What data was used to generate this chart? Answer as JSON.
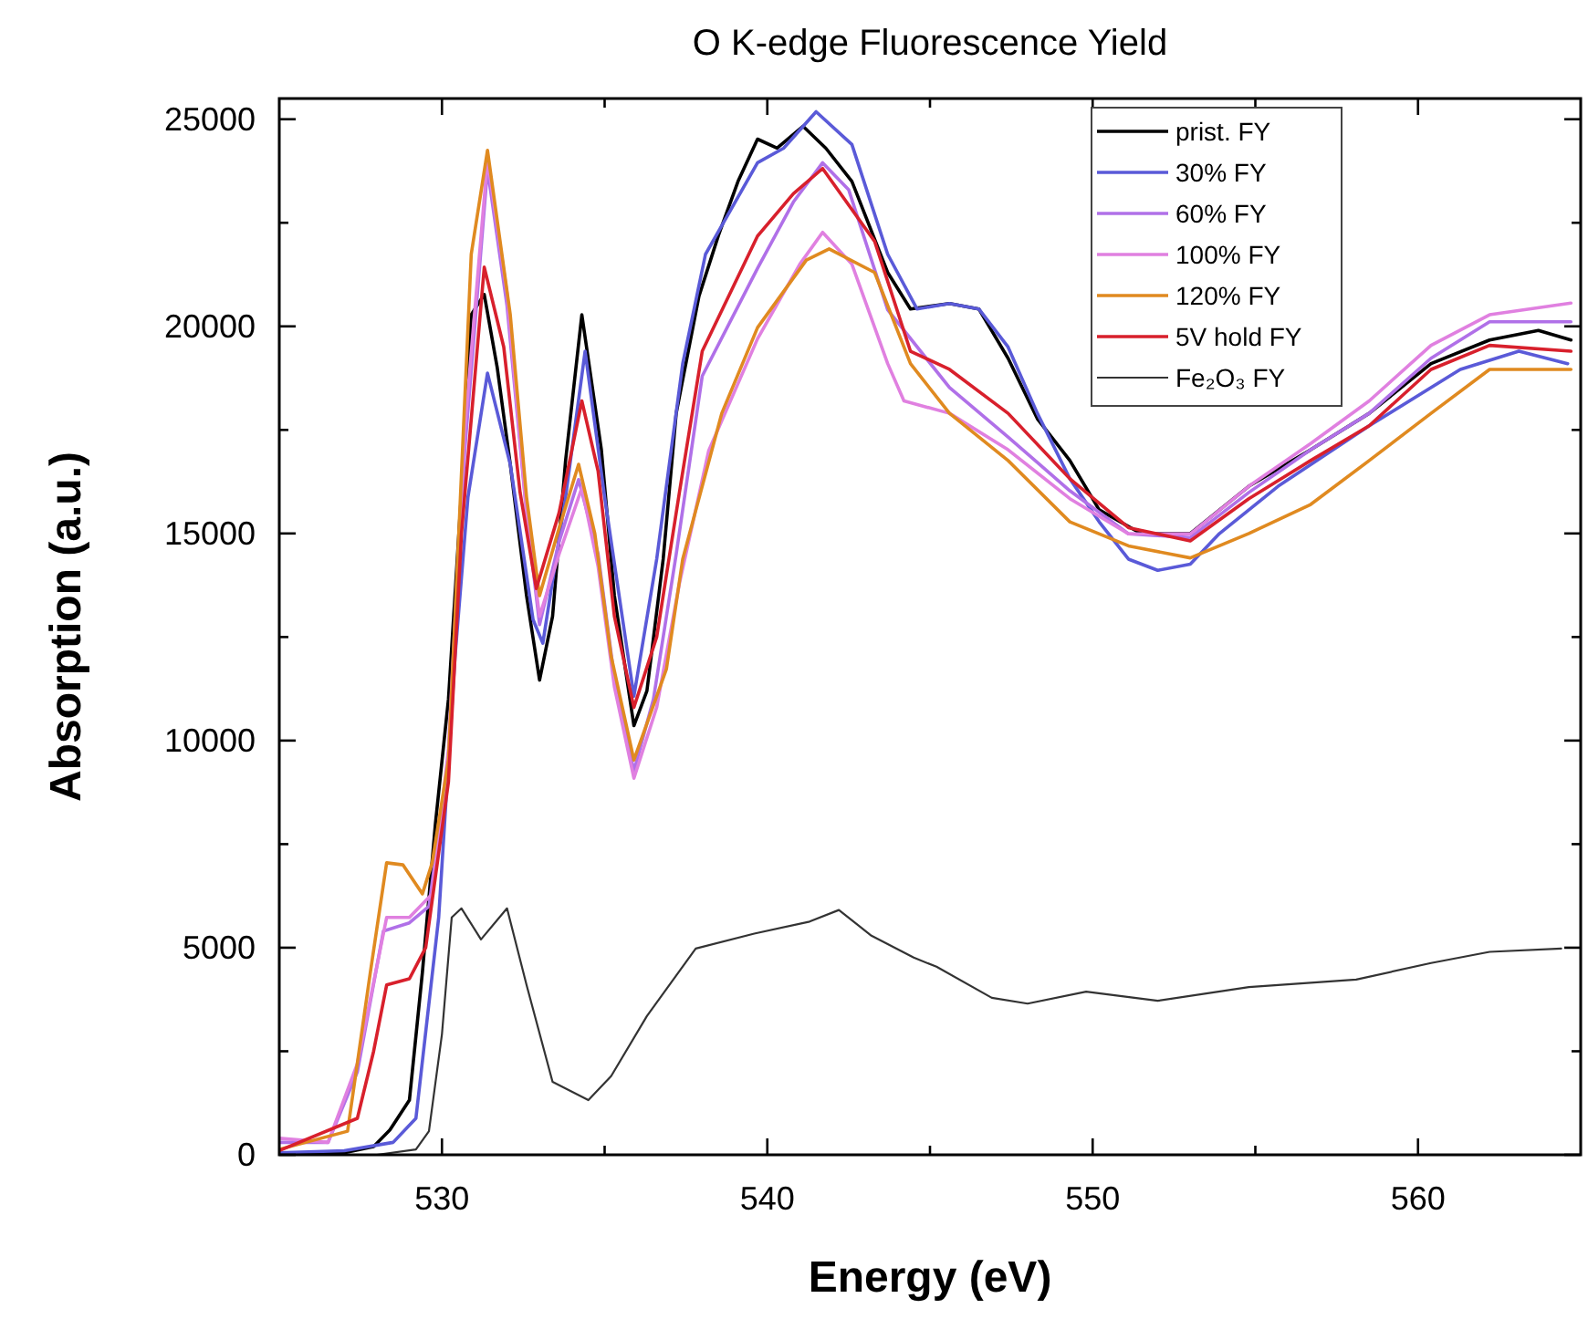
{
  "chart_data": {
    "type": "line",
    "title": "O K-edge Fluorescence Yield",
    "xlabel": "Energy (eV)",
    "ylabel": "Absorption (a.u.)",
    "xlim": [
      525,
      565
    ],
    "ylim": [
      0,
      25500
    ],
    "xticks": [
      530,
      {
        "value": 535,
        "label": null
      },
      540,
      {
        "value": 545,
        "label": null
      },
      550,
      {
        "value": 555,
        "label": null
      },
      560
    ],
    "yticks": [
      0,
      {
        "value": 2500,
        "label": null
      },
      5000,
      {
        "value": 7500,
        "label": null
      },
      10000,
      {
        "value": 12500,
        "label": null
      },
      15000,
      {
        "value": 17500,
        "label": null
      },
      20000,
      {
        "value": 22500,
        "label": null
      },
      25000
    ],
    "grid": false,
    "legend": "top right",
    "marker": "none",
    "line_style": "solid",
    "series": [
      {
        "name": "prist. FY",
        "color": "#000000",
        "x": [
          525,
          527,
          527.9,
          528.4,
          529,
          529.4,
          529.8,
          530.2,
          530.6,
          530.9,
          531.3,
          531.7,
          532.1,
          532.6,
          533,
          533.4,
          533.8,
          534.3,
          534.9,
          535.3,
          535.9,
          536.3,
          536.8,
          537.2,
          537.9,
          538.5,
          539.1,
          539.7,
          540.3,
          541.1,
          541.8,
          542.6,
          543.7,
          544.4,
          545.6,
          546.5,
          547.4,
          548.3,
          549.3,
          550.2,
          551.5,
          553,
          554.8,
          556.7,
          558.5,
          560.4,
          562.2,
          563.7,
          564.7
        ],
        "values": [
          0,
          50,
          200,
          600,
          1320,
          4410,
          8000,
          11000,
          16000,
          20280,
          20770,
          19000,
          16670,
          13500,
          11460,
          13000,
          16760,
          20280,
          17020,
          13500,
          10360,
          11200,
          14380,
          17900,
          20730,
          22200,
          23500,
          24520,
          24300,
          24830,
          24300,
          23500,
          21300,
          20420,
          20550,
          20420,
          19230,
          17770,
          16760,
          15570,
          14990,
          15000,
          16140,
          17020,
          17900,
          19100,
          19670,
          19900,
          19670
        ]
      },
      {
        "name": "30% FY",
        "color": "#5a5ad8",
        "x": [
          525,
          527,
          528.5,
          529.2,
          529.9,
          530.4,
          530.8,
          531.4,
          532.1,
          532.8,
          533.1,
          533.8,
          534.4,
          535,
          535.9,
          536.6,
          537.4,
          538.1,
          539.7,
          540.5,
          541.5,
          542.6,
          543.7,
          544.6,
          545.6,
          546.5,
          547.4,
          548.3,
          549.3,
          550.2,
          551.1,
          552,
          553,
          553.9,
          555.7,
          558.5,
          561.3,
          563.1,
          564.6
        ],
        "values": [
          50,
          100,
          300,
          880,
          5730,
          12000,
          15880,
          18870,
          16670,
          12920,
          12350,
          15880,
          19400,
          15880,
          11070,
          14380,
          19100,
          21740,
          23950,
          24300,
          25180,
          24390,
          21740,
          20420,
          20550,
          20420,
          19500,
          17900,
          16320,
          15280,
          14380,
          14110,
          14260,
          15000,
          16140,
          17600,
          18960,
          19400,
          19100
        ]
      },
      {
        "name": "60% FY",
        "color": "#b070e8",
        "x": [
          525,
          526.5,
          527.4,
          528.2,
          529,
          529.6,
          530.2,
          530.7,
          531.4,
          532,
          532.6,
          533,
          533.6,
          534.2,
          534.8,
          535.3,
          535.9,
          536.5,
          537.2,
          538,
          539.7,
          540.8,
          541.7,
          542.5,
          543.7,
          545.6,
          547.4,
          549.3,
          551.1,
          553,
          554.8,
          556.7,
          558.5,
          560.4,
          562.2,
          564.7
        ],
        "values": [
          300,
          300,
          2000,
          5400,
          5600,
          6000,
          9500,
          17000,
          23800,
          20500,
          15500,
          12800,
          14800,
          16300,
          14500,
          11500,
          9260,
          11000,
          14500,
          18800,
          21400,
          23000,
          23950,
          23300,
          20400,
          18520,
          17330,
          16030,
          14990,
          14900,
          15990,
          17020,
          17900,
          19230,
          20110,
          20110
        ]
      },
      {
        "name": "100% FY",
        "color": "#e080e0",
        "x": [
          525,
          526.5,
          527.4,
          528.3,
          529,
          529.7,
          530.2,
          530.7,
          531.4,
          532,
          532.6,
          533,
          533.6,
          534.3,
          534.8,
          535.3,
          535.9,
          536.6,
          537.3,
          538.2,
          539.7,
          541,
          541.7,
          542.6,
          543.7,
          544.2,
          545.6,
          547.4,
          549.3,
          551.1,
          553,
          554.8,
          556.7,
          558.5,
          560.4,
          562.2,
          564.7
        ],
        "values": [
          400,
          300,
          2200,
          5730,
          5730,
          6300,
          9800,
          17500,
          24030,
          20800,
          15500,
          13000,
          14500,
          16100,
          14200,
          11300,
          9090,
          10800,
          13800,
          17000,
          19700,
          21500,
          22270,
          21500,
          19100,
          18200,
          17900,
          17020,
          15840,
          14990,
          14990,
          16140,
          17170,
          18200,
          19540,
          20280,
          20560
        ]
      },
      {
        "name": "120% FY",
        "color": "#e08a20",
        "x": [
          525,
          527.1,
          527.8,
          528.3,
          528.8,
          529.4,
          529.7,
          530.2,
          530.4,
          530.9,
          531.4,
          532.1,
          532.6,
          533,
          533.6,
          534.2,
          534.7,
          535.2,
          535.9,
          536.9,
          537.4,
          538.6,
          539.7,
          541.2,
          541.9,
          543.3,
          544.4,
          545.6,
          547.4,
          549.3,
          551.1,
          553,
          554.8,
          556.7,
          558.5,
          560.4,
          562.2,
          564.7
        ],
        "values": [
          130,
          570,
          4410,
          7050,
          7000,
          6300,
          7050,
          9530,
          12920,
          21740,
          24250,
          20280,
          15880,
          13500,
          15130,
          16670,
          14990,
          12040,
          9530,
          11730,
          14380,
          17900,
          19970,
          21600,
          21870,
          21300,
          19100,
          17900,
          16760,
          15280,
          14700,
          14410,
          15000,
          15700,
          16760,
          17900,
          18960,
          18960
        ]
      },
      {
        "name": "5V hold FY",
        "color": "#d8202c",
        "x": [
          525,
          527.4,
          527.9,
          528.3,
          529,
          529.5,
          530.2,
          530.6,
          531.3,
          531.9,
          532.4,
          532.9,
          533.6,
          534.3,
          534.8,
          535.3,
          535.9,
          536.6,
          537.3,
          538,
          539.7,
          540.8,
          541.7,
          543.3,
          544.4,
          545.6,
          547.4,
          549.3,
          551.1,
          553,
          554.8,
          556.7,
          558.5,
          560.4,
          562.2,
          564.7
        ],
        "values": [
          100,
          880,
          2500,
          4100,
          4250,
          5000,
          9000,
          15000,
          21430,
          19500,
          16000,
          13670,
          15500,
          18200,
          16500,
          13000,
          10800,
          12500,
          16000,
          19400,
          22180,
          23200,
          23810,
          22050,
          19400,
          18960,
          17900,
          16320,
          15140,
          14820,
          15840,
          16760,
          17600,
          18960,
          19540,
          19400
        ]
      },
      {
        "name": "Fe₂O₃ FY",
        "color": "#333333",
        "x": [
          525,
          528,
          529.2,
          529.6,
          530,
          530.3,
          530.6,
          531.2,
          532,
          532.6,
          533.4,
          534.5,
          535.2,
          536.3,
          537.8,
          539.6,
          541.3,
          542.2,
          543.2,
          544.5,
          545.2,
          546.9,
          548,
          549.8,
          552,
          554.8,
          558.1,
          560.4,
          562.2,
          564.4
        ],
        "values": [
          0,
          0,
          130,
          570,
          2910,
          5730,
          5950,
          5200,
          5950,
          4100,
          1760,
          1320,
          1900,
          3350,
          4980,
          5340,
          5630,
          5910,
          5290,
          4760,
          4540,
          3790,
          3650,
          3940,
          3720,
          4050,
          4230,
          4630,
          4900,
          4980
        ]
      }
    ]
  }
}
